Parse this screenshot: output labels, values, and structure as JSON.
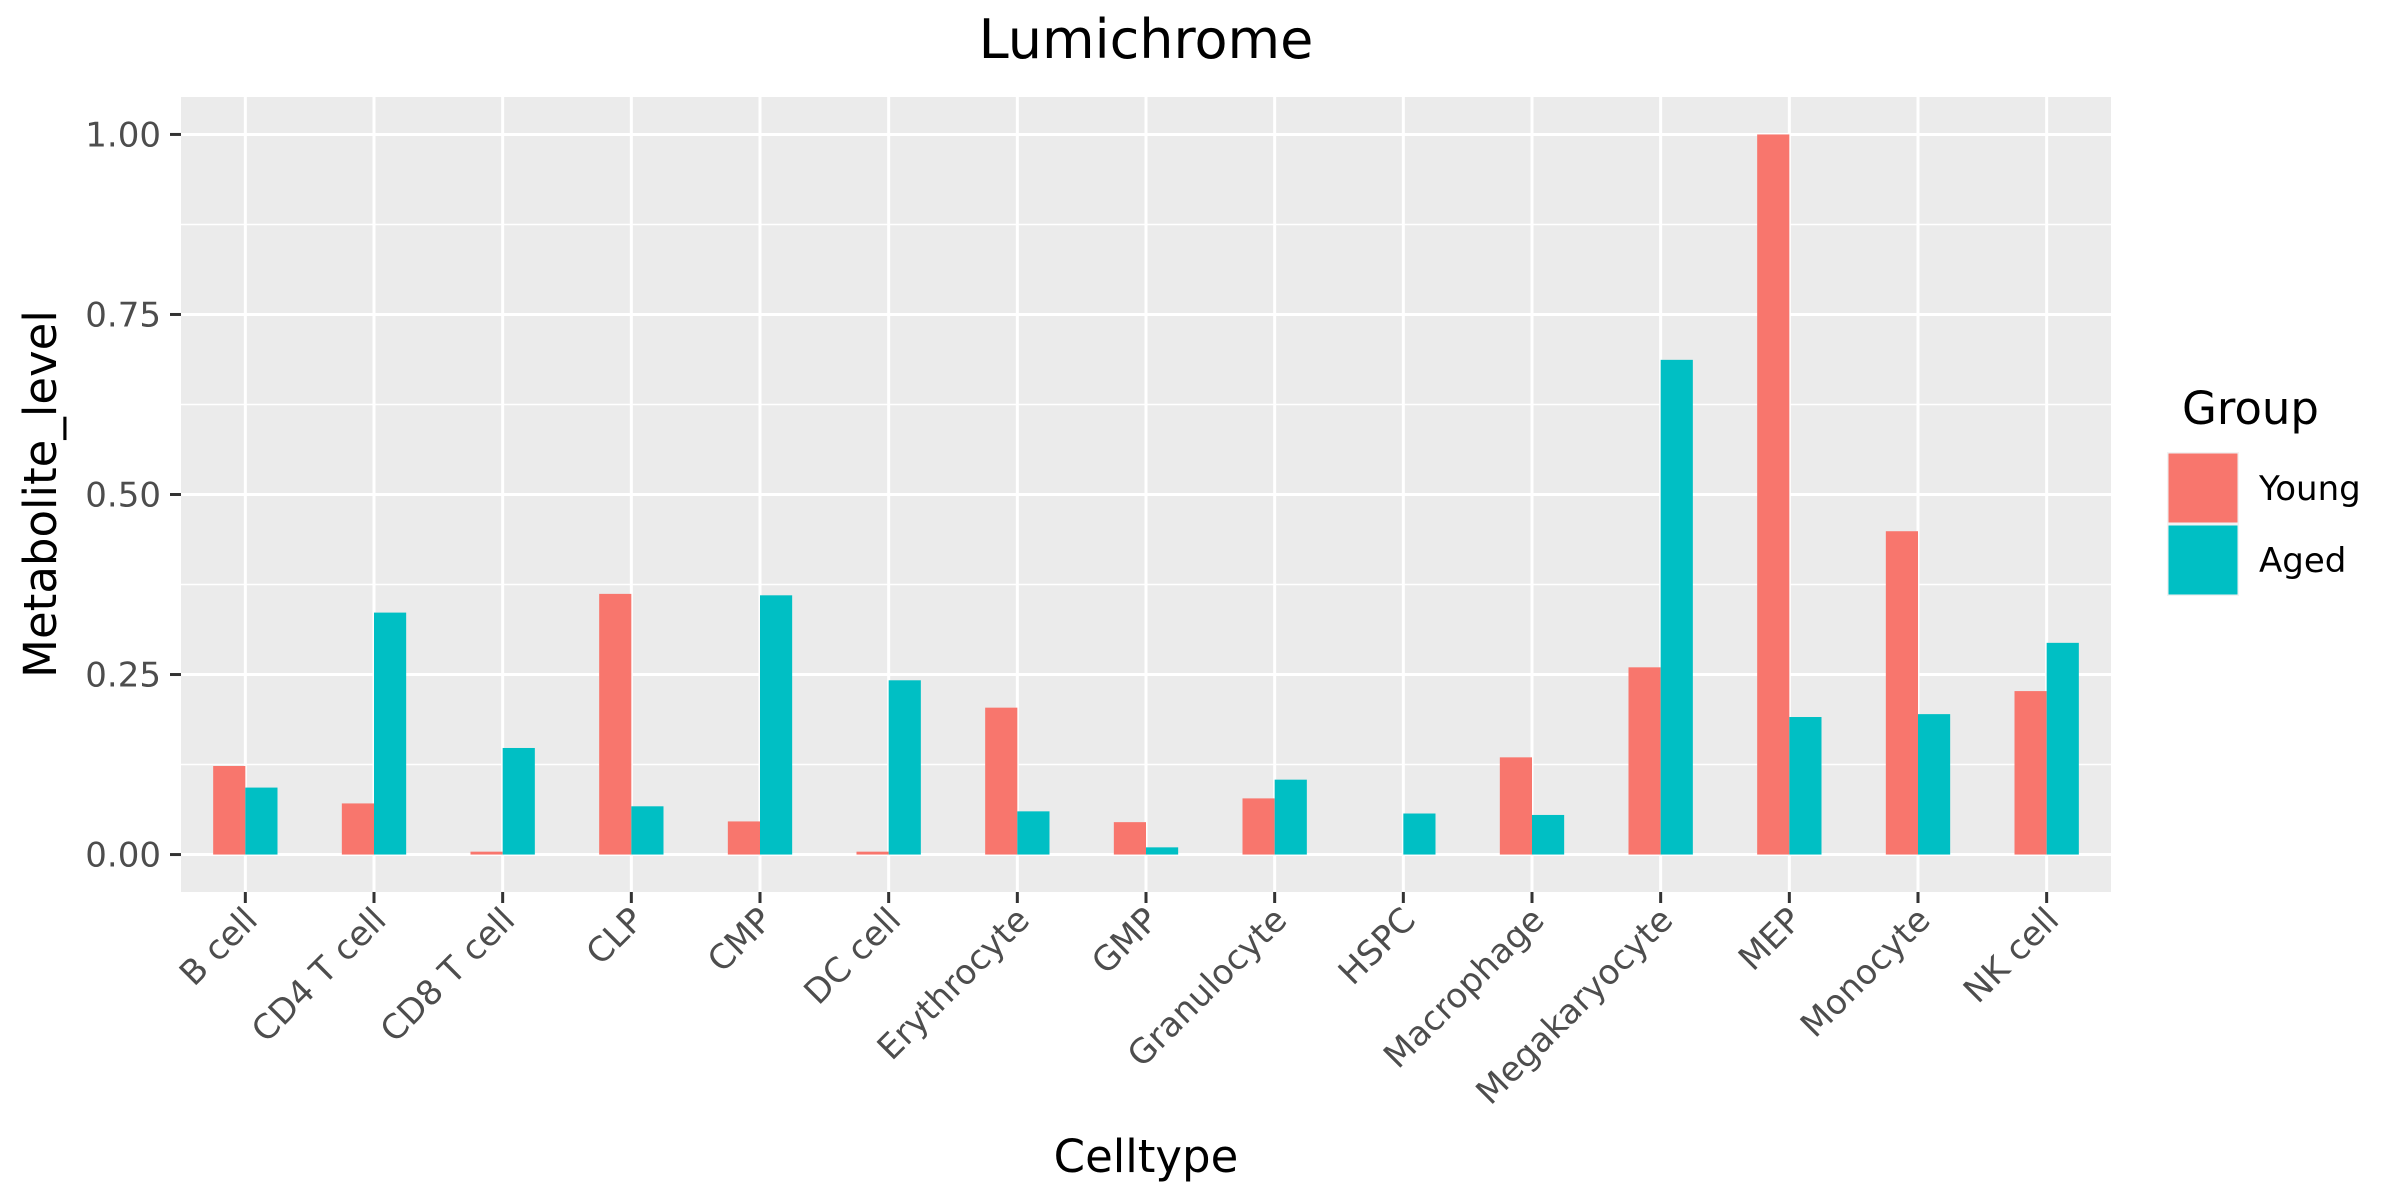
{
  "chart_data": {
    "type": "bar",
    "title": "Lumichrome",
    "xlabel": "Celltype",
    "ylabel": "Metabolite_level",
    "categories": [
      "B cell",
      "CD4 T cell",
      "CD8 T cell",
      "CLP",
      "CMP",
      "DC cell",
      "Erythrocyte",
      "GMP",
      "Granulocyte",
      "HSPC",
      "Macrophage",
      "Megakaryocyte",
      "MEP",
      "Monocyte",
      "NK cell"
    ],
    "series": [
      {
        "name": "Young",
        "color": "#F8766D",
        "values": [
          0.123,
          0.071,
          0.004,
          0.362,
          0.046,
          0.004,
          0.204,
          0.045,
          0.078,
          0.0,
          0.135,
          0.26,
          1.0,
          0.449,
          0.227
        ]
      },
      {
        "name": "Aged",
        "color": "#00BFC4",
        "values": [
          0.093,
          0.336,
          0.148,
          0.067,
          0.36,
          0.242,
          0.06,
          0.01,
          0.104,
          0.057,
          0.055,
          0.687,
          0.191,
          0.195,
          0.294
        ]
      }
    ],
    "ylim": [
      -0.052,
      1.052
    ],
    "yticks": [
      0.0,
      0.25,
      0.5,
      0.75,
      1.0
    ],
    "ytick_labels": [
      "0.00",
      "0.25",
      "0.50",
      "0.75",
      "1.00"
    ],
    "grid": true,
    "panel_background": "#EBEBEB",
    "grid_color": "#FFFFFF",
    "legend": {
      "title": "Group",
      "position": "right"
    }
  }
}
